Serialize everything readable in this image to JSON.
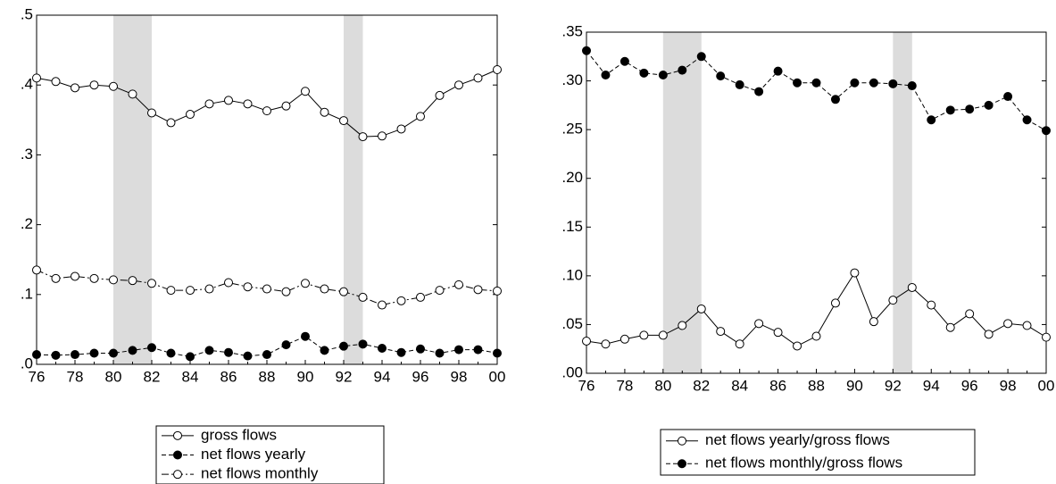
{
  "chart_data": [
    {
      "type": "line",
      "x": [
        1976,
        1977,
        1978,
        1979,
        1980,
        1981,
        1982,
        1983,
        1984,
        1985,
        1986,
        1987,
        1988,
        1989,
        1990,
        1991,
        1992,
        1993,
        1994,
        1995,
        1996,
        1997,
        1998,
        1999,
        2000
      ],
      "xlim": [
        1976,
        2000
      ],
      "xticks": [
        {
          "value": 1976,
          "label": "76"
        },
        {
          "value": 1978,
          "label": "78"
        },
        {
          "value": 1980,
          "label": "80"
        },
        {
          "value": 1982,
          "label": "82"
        },
        {
          "value": 1984,
          "label": "84"
        },
        {
          "value": 1986,
          "label": "86"
        },
        {
          "value": 1988,
          "label": "88"
        },
        {
          "value": 1990,
          "label": "90"
        },
        {
          "value": 1992,
          "label": "92"
        },
        {
          "value": 1994,
          "label": "94"
        },
        {
          "value": 1996,
          "label": "96"
        },
        {
          "value": 1998,
          "label": "98"
        },
        {
          "value": 2000,
          "label": "00"
        }
      ],
      "ylim": [
        0,
        0.5
      ],
      "yticks": [
        {
          "value": 0,
          "label": ".0"
        },
        {
          "value": 0.1,
          "label": ".1"
        },
        {
          "value": 0.2,
          "label": ".2"
        },
        {
          "value": 0.3,
          "label": ".3"
        },
        {
          "value": 0.4,
          "label": ".4"
        },
        {
          "value": 0.5,
          "label": ".5"
        }
      ],
      "shading": [
        [
          1980,
          1982
        ],
        [
          1992,
          1993
        ]
      ],
      "grid": false,
      "legend": "bottom",
      "series": [
        {
          "name": "gross flows",
          "color": "#000000",
          "dash": "solid",
          "marker": "open",
          "values": [
            0.41,
            0.405,
            0.396,
            0.4,
            0.398,
            0.387,
            0.36,
            0.346,
            0.358,
            0.373,
            0.378,
            0.373,
            0.363,
            0.37,
            0.391,
            0.361,
            0.349,
            0.326,
            0.327,
            0.337,
            0.355,
            0.385,
            0.4,
            0.41,
            0.422
          ]
        },
        {
          "name": "net flows yearly",
          "color": "#000000",
          "dash": "dashed",
          "marker": "filled",
          "values": [
            0.014,
            0.013,
            0.014,
            0.016,
            0.016,
            0.02,
            0.024,
            0.016,
            0.011,
            0.02,
            0.017,
            0.012,
            0.014,
            0.028,
            0.04,
            0.02,
            0.026,
            0.029,
            0.023,
            0.017,
            0.022,
            0.016,
            0.021,
            0.021,
            0.016
          ]
        },
        {
          "name": "net flows monthly",
          "color": "#000000",
          "dash": "dashdot",
          "marker": "open",
          "values": [
            0.135,
            0.123,
            0.126,
            0.123,
            0.121,
            0.12,
            0.116,
            0.106,
            0.106,
            0.108,
            0.117,
            0.111,
            0.108,
            0.104,
            0.116,
            0.108,
            0.104,
            0.096,
            0.085,
            0.091,
            0.096,
            0.106,
            0.114,
            0.107,
            0.105
          ]
        }
      ]
    },
    {
      "type": "line",
      "x": [
        1976,
        1977,
        1978,
        1979,
        1980,
        1981,
        1982,
        1983,
        1984,
        1985,
        1986,
        1987,
        1988,
        1989,
        1990,
        1991,
        1992,
        1993,
        1994,
        1995,
        1996,
        1997,
        1998,
        1999,
        2000
      ],
      "xlim": [
        1976,
        2000
      ],
      "xticks": [
        {
          "value": 1976,
          "label": "76"
        },
        {
          "value": 1978,
          "label": "78"
        },
        {
          "value": 1980,
          "label": "80"
        },
        {
          "value": 1982,
          "label": "82"
        },
        {
          "value": 1984,
          "label": "84"
        },
        {
          "value": 1986,
          "label": "86"
        },
        {
          "value": 1988,
          "label": "88"
        },
        {
          "value": 1990,
          "label": "90"
        },
        {
          "value": 1992,
          "label": "92"
        },
        {
          "value": 1994,
          "label": "94"
        },
        {
          "value": 1996,
          "label": "96"
        },
        {
          "value": 1998,
          "label": "98"
        },
        {
          "value": 2000,
          "label": "00"
        }
      ],
      "ylim": [
        0,
        0.35
      ],
      "yticks": [
        {
          "value": 0,
          "label": ".00"
        },
        {
          "value": 0.05,
          "label": ".05"
        },
        {
          "value": 0.1,
          "label": ".10"
        },
        {
          "value": 0.15,
          "label": ".15"
        },
        {
          "value": 0.2,
          "label": ".20"
        },
        {
          "value": 0.25,
          "label": ".25"
        },
        {
          "value": 0.3,
          "label": ".30"
        },
        {
          "value": 0.35,
          "label": ".35"
        }
      ],
      "shading": [
        [
          1980,
          1982
        ],
        [
          1992,
          1993
        ]
      ],
      "grid": false,
      "legend": "bottom",
      "series": [
        {
          "name": "net flows yearly/gross flows",
          "color": "#000000",
          "dash": "solid",
          "marker": "open",
          "values": [
            0.033,
            0.03,
            0.035,
            0.039,
            0.039,
            0.049,
            0.066,
            0.043,
            0.03,
            0.051,
            0.042,
            0.028,
            0.038,
            0.072,
            0.103,
            0.053,
            0.075,
            0.088,
            0.07,
            0.047,
            0.061,
            0.04,
            0.051,
            0.049,
            0.037
          ]
        },
        {
          "name": "net flows monthly/gross flows",
          "color": "#000000",
          "dash": "dashed",
          "marker": "filled",
          "values": [
            0.331,
            0.306,
            0.32,
            0.308,
            0.306,
            0.311,
            0.325,
            0.305,
            0.296,
            0.289,
            0.31,
            0.298,
            0.298,
            0.281,
            0.298,
            0.298,
            0.297,
            0.295,
            0.26,
            0.27,
            0.271,
            0.275,
            0.284,
            0.26,
            0.249
          ]
        }
      ]
    }
  ]
}
